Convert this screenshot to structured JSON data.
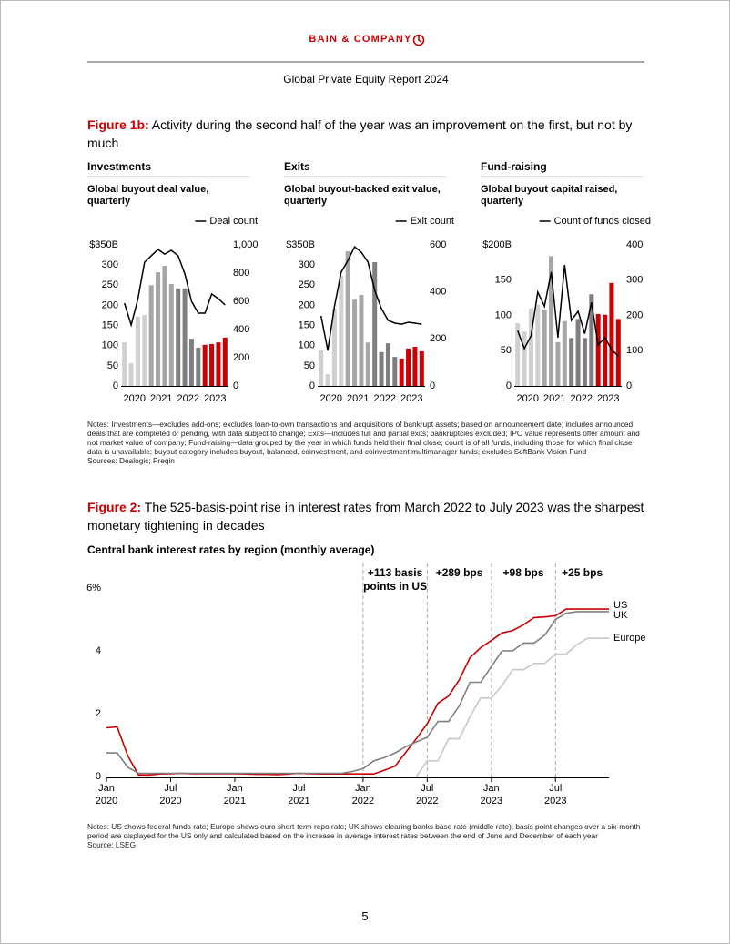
{
  "header": {
    "brand": "BAIN & COMPANY",
    "report": "Global Private Equity Report 2024"
  },
  "figures": [
    {
      "label": "Figure 1b:",
      "caption": "Activity during the second half of the year was an improvement on the first, but not by much",
      "notes": "Notes: Investments—excludes add-ons; excludes loan-to-own transactions and acquisitions of bankrupt assets; based on announcement date; includes announced deals that are completed or pending, with data subject to change; Exits—includes full and partial exits; bankruptcies excluded; IPO value represents offer amount and not market value of company; Fund-raising—data grouped by the year in which funds held their final close; count is of all funds, including those for which final close data is unavailable; buyout category includes buyout, balanced, coinvestment, and coinvestment multimanager funds; excludes SoftBank Vision Fund",
      "sources": "Sources: Dealogic; Preqin"
    },
    {
      "label": "Figure 2:",
      "caption": "The 525-basis-point rise in interest rates from March 2022 to July 2023 was the sharpest monetary tightening in decades",
      "notes": "Notes: US shows federal funds rate; Europe shows euro short-term repo rate; UK shows clearing banks base rate (middle rate); basis point changes over a six-month period are displayed for the US only and calculated based on the increase in average interest rates between the end of June and December of each year",
      "sources": "Source: LSEG"
    }
  ],
  "chart_data": [
    {
      "type": "bar",
      "panel_title": "Investments",
      "title": "Global buyout deal value, quarterly",
      "years": [
        "2020",
        "2021",
        "2022",
        "2023"
      ],
      "year_colors": [
        "#d0d0d0",
        "#a6a6a6",
        "#7f7f7f",
        "#cc0000"
      ],
      "values": [
        108,
        56,
        172,
        176,
        250,
        282,
        298,
        253,
        242,
        242,
        117,
        95,
        102,
        104,
        108,
        120
      ],
      "ylim": [
        0,
        350
      ],
      "yticks": [
        0,
        50,
        100,
        150,
        200,
        250,
        300,
        {
          "value": 350,
          "label": "$350B"
        }
      ],
      "line": {
        "name": "Deal count",
        "color": "#000000",
        "axis": "y2",
        "values": [
          587,
          432,
          613,
          877,
          923,
          968,
          935,
          961,
          923,
          794,
          600,
          516,
          516,
          652,
          619,
          574
        ]
      },
      "y2lim": [
        0,
        1000
      ],
      "y2ticks": [
        0,
        200,
        400,
        600,
        800,
        {
          "value": 1000,
          "label": "1,000"
        }
      ]
    },
    {
      "type": "bar",
      "panel_title": "Exits",
      "title": "Global buyout-backed exit value, quarterly",
      "years": [
        "2020",
        "2021",
        "2022",
        "2023"
      ],
      "year_colors": [
        "#d0d0d0",
        "#a6a6a6",
        "#7f7f7f",
        "#cc0000"
      ],
      "values": [
        88,
        29,
        192,
        273,
        334,
        214,
        226,
        108,
        307,
        84,
        106,
        72,
        68,
        93,
        97,
        86
      ],
      "ylim": [
        0,
        350
      ],
      "yticks": [
        0,
        50,
        100,
        150,
        200,
        250,
        300,
        {
          "value": 350,
          "label": "$350B"
        }
      ],
      "line": {
        "name": "Exit count",
        "color": "#000000",
        "axis": "y2",
        "values": [
          298,
          151,
          337,
          484,
          534,
          592,
          569,
          527,
          406,
          329,
          279,
          267,
          263,
          271,
          267,
          263
        ]
      },
      "y2lim": [
        0,
        600
      ],
      "y2ticks": [
        0,
        200,
        400,
        600
      ]
    },
    {
      "type": "bar",
      "panel_title": "Fund-raising",
      "title": "Global buyout capital raised, quarterly",
      "years": [
        "2020",
        "2021",
        "2022",
        "2023"
      ],
      "year_colors": [
        "#d0d0d0",
        "#a6a6a6",
        "#7f7f7f",
        "#cc0000"
      ],
      "values": [
        89,
        77,
        110,
        115,
        108,
        184,
        62,
        92,
        68,
        95,
        68,
        130,
        102,
        101,
        146,
        95
      ],
      "ylim": [
        0,
        200
      ],
      "yticks": [
        0,
        50,
        100,
        150,
        {
          "value": 200,
          "label": "$200B"
        }
      ],
      "line": {
        "name": "Count of funds closed",
        "color": "#000000",
        "axis": "y2",
        "values": [
          157,
          106,
          142,
          266,
          226,
          323,
          137,
          343,
          186,
          212,
          148,
          237,
          116,
          137,
          103,
          85
        ]
      },
      "y2lim": [
        0,
        400
      ],
      "y2ticks": [
        0,
        100,
        200,
        300,
        400
      ]
    },
    {
      "type": "line",
      "title": "Central bank interest rates by region (monthly average)",
      "x": [
        "2020-01",
        "2020-02",
        "2020-03",
        "2020-04",
        "2020-05",
        "2020-06",
        "2020-07",
        "2020-08",
        "2020-09",
        "2020-10",
        "2020-11",
        "2020-12",
        "2021-01",
        "2021-02",
        "2021-03",
        "2021-04",
        "2021-05",
        "2021-06",
        "2021-07",
        "2021-08",
        "2021-09",
        "2021-10",
        "2021-11",
        "2021-12",
        "2022-01",
        "2022-02",
        "2022-03",
        "2022-04",
        "2022-05",
        "2022-06",
        "2022-07",
        "2022-08",
        "2022-09",
        "2022-10",
        "2022-11",
        "2022-12",
        "2023-01",
        "2023-02",
        "2023-03",
        "2023-04",
        "2023-05",
        "2023-06",
        "2023-07",
        "2023-08",
        "2023-09",
        "2023-10",
        "2023-11",
        "2023-12"
      ],
      "xlim": [
        "2020-01",
        "2023-12"
      ],
      "xticks": [
        {
          "value": "2020-01",
          "label": "Jan 2020"
        },
        {
          "value": "2020-07",
          "label": "Jul 2020"
        },
        {
          "value": "2021-01",
          "label": "Jan 2021"
        },
        {
          "value": "2021-07",
          "label": "Jul 2021"
        },
        {
          "value": "2022-01",
          "label": "Jan 2022"
        },
        {
          "value": "2022-07",
          "label": "Jul 2022"
        },
        {
          "value": "2023-01",
          "label": "Jan 2023"
        },
        {
          "value": "2023-07",
          "label": "Jul 2023"
        }
      ],
      "ylim": [
        0,
        6
      ],
      "yticks": [
        0,
        2,
        4,
        {
          "value": 6,
          "label": "6%"
        }
      ],
      "series": [
        {
          "name": "US",
          "color": "#cc0000",
          "values": [
            1.55,
            1.58,
            0.65,
            0.05,
            0.05,
            0.08,
            0.09,
            0.1,
            0.09,
            0.09,
            0.09,
            0.09,
            0.09,
            0.08,
            0.07,
            0.07,
            0.06,
            0.08,
            0.1,
            0.09,
            0.08,
            0.08,
            0.08,
            0.08,
            0.08,
            0.08,
            0.2,
            0.33,
            0.77,
            1.21,
            1.68,
            2.33,
            2.56,
            3.08,
            3.78,
            4.1,
            4.33,
            4.57,
            4.65,
            4.83,
            5.06,
            5.08,
            5.12,
            5.33,
            5.33,
            5.33,
            5.33,
            5.33
          ]
        },
        {
          "name": "UK",
          "color": "#7f7f7f",
          "values": [
            0.75,
            0.75,
            0.29,
            0.1,
            0.1,
            0.1,
            0.1,
            0.1,
            0.1,
            0.1,
            0.1,
            0.1,
            0.1,
            0.1,
            0.1,
            0.1,
            0.1,
            0.1,
            0.1,
            0.1,
            0.1,
            0.1,
            0.1,
            0.16,
            0.25,
            0.5,
            0.6,
            0.75,
            0.95,
            1.1,
            1.25,
            1.75,
            1.75,
            2.25,
            3.0,
            3.0,
            3.5,
            4.0,
            4.0,
            4.25,
            4.25,
            4.5,
            5.0,
            5.2,
            5.25,
            5.25,
            5.25,
            5.25
          ]
        },
        {
          "name": "Europe",
          "color": "#c8c8c8",
          "values": [
            null,
            null,
            null,
            null,
            null,
            null,
            null,
            null,
            null,
            null,
            null,
            null,
            null,
            null,
            null,
            null,
            null,
            null,
            null,
            null,
            null,
            null,
            null,
            null,
            null,
            null,
            null,
            null,
            null,
            0,
            0.5,
            0.5,
            1.2,
            1.2,
            1.9,
            2.5,
            2.5,
            2.9,
            3.4,
            3.4,
            3.6,
            3.6,
            3.9,
            3.9,
            4.2,
            4.4,
            4.4,
            4.4
          ]
        }
      ],
      "periods": [
        {
          "start": "2022-01",
          "end": "2022-07",
          "label": "+113 basis points in US"
        },
        {
          "start": "2022-07",
          "end": "2023-01",
          "label": "+289 bps"
        },
        {
          "start": "2023-01",
          "end": "2023-07",
          "label": "+98 bps"
        },
        {
          "start": "2023-07",
          "end": "2023-12",
          "label": "+25 bps"
        }
      ]
    }
  ],
  "page_number": 5
}
